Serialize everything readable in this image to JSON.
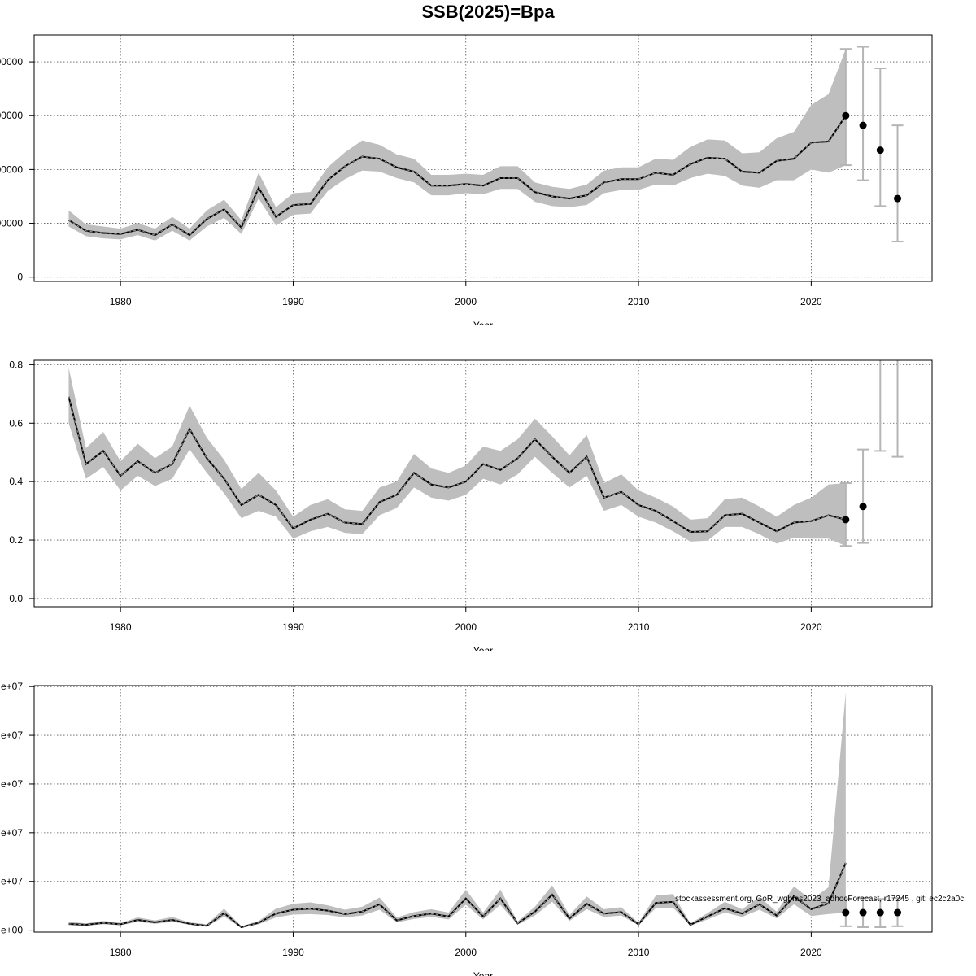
{
  "title": "SSB(2025)=Bpa",
  "footnote": "stockassessment.org, GoR_wgbfas2023_adhocForecast, r17245 , git: ec2c2a0c",
  "colors": {
    "band": "#bebebe",
    "line": "#000000",
    "grid": "#555555",
    "whisker": "#b5b5b5"
  },
  "chart_data": [
    {
      "type": "line",
      "xlabel": "Year",
      "xlim": [
        1975,
        2027
      ],
      "ylim": [
        -8000,
        450000
      ],
      "xticks": [
        1980,
        1990,
        2000,
        2010,
        2020
      ],
      "yticks": [
        0,
        100000,
        200000,
        300000,
        400000
      ],
      "ytick_labels": [
        "0",
        "00000",
        "00000",
        "00000",
        "00000"
      ],
      "grid": true,
      "series": [
        {
          "x": [
            1977,
            1978,
            1979,
            1980,
            1981,
            1982,
            1983,
            1984,
            1985,
            1986,
            1987,
            1988,
            1989,
            1990,
            1991,
            1992,
            1993,
            1994,
            1995,
            1996,
            1997,
            1998,
            1999,
            2000,
            2001,
            2002,
            2003,
            2004,
            2005,
            2006,
            2007,
            2008,
            2009,
            2010,
            2011,
            2012,
            2013,
            2014,
            2015,
            2016,
            2017,
            2018,
            2019,
            2020,
            2021,
            2022
          ],
          "y": [
            106000,
            86000,
            82000,
            80000,
            88000,
            78000,
            98000,
            78000,
            108000,
            126000,
            92000,
            166000,
            112000,
            134000,
            136000,
            180000,
            206000,
            224000,
            220000,
            204000,
            196000,
            170000,
            170000,
            173000,
            170000,
            184000,
            184000,
            158000,
            150000,
            146000,
            152000,
            176000,
            182000,
            182000,
            194000,
            190000,
            210000,
            222000,
            220000,
            196000,
            194000,
            216000,
            220000,
            250000,
            252000,
            300000
          ],
          "lower": [
            94000,
            76000,
            72000,
            70000,
            78000,
            68000,
            86000,
            68000,
            94000,
            110000,
            80000,
            146000,
            96000,
            116000,
            118000,
            160000,
            182000,
            198000,
            196000,
            184000,
            176000,
            152000,
            152000,
            156000,
            154000,
            164000,
            164000,
            140000,
            132000,
            130000,
            134000,
            156000,
            162000,
            162000,
            172000,
            170000,
            184000,
            192000,
            188000,
            170000,
            166000,
            180000,
            180000,
            200000,
            194000,
            208000
          ],
          "upper": [
            124000,
            98000,
            94000,
            90000,
            100000,
            90000,
            112000,
            90000,
            124000,
            144000,
            106000,
            194000,
            130000,
            156000,
            158000,
            204000,
            232000,
            254000,
            246000,
            228000,
            220000,
            190000,
            190000,
            192000,
            190000,
            206000,
            206000,
            176000,
            168000,
            164000,
            172000,
            198000,
            204000,
            204000,
            220000,
            218000,
            242000,
            256000,
            254000,
            230000,
            232000,
            258000,
            270000,
            320000,
            340000,
            424000
          ]
        }
      ],
      "forecast": {
        "x": [
          2022,
          2023,
          2024,
          2025
        ],
        "y": [
          300000,
          282000,
          236000,
          146000
        ],
        "lower": [
          208000,
          180000,
          132000,
          66000
        ],
        "upper": [
          424000,
          428000,
          388000,
          282000
        ]
      }
    },
    {
      "type": "line",
      "xlabel": "Year",
      "xlim": [
        1975,
        2027
      ],
      "ylim": [
        -0.028,
        0.815
      ],
      "xticks": [
        1980,
        1990,
        2000,
        2010,
        2020
      ],
      "yticks": [
        0,
        0.2,
        0.4,
        0.6,
        0.8
      ],
      "ytick_labels": [
        "0.0",
        "0.2",
        "0.4",
        "0.6",
        "0.8"
      ],
      "grid": true,
      "series": [
        {
          "x": [
            1977,
            1978,
            1979,
            1980,
            1981,
            1982,
            1983,
            1984,
            1985,
            1986,
            1987,
            1988,
            1989,
            1990,
            1991,
            1992,
            1993,
            1994,
            1995,
            1996,
            1997,
            1998,
            1999,
            2000,
            2001,
            2002,
            2003,
            2004,
            2005,
            2006,
            2007,
            2008,
            2009,
            2010,
            2011,
            2012,
            2013,
            2014,
            2015,
            2016,
            2017,
            2018,
            2019,
            2020,
            2021,
            2022
          ],
          "y": [
            0.69,
            0.46,
            0.505,
            0.42,
            0.47,
            0.43,
            0.46,
            0.58,
            0.48,
            0.41,
            0.32,
            0.355,
            0.32,
            0.24,
            0.27,
            0.29,
            0.26,
            0.255,
            0.33,
            0.355,
            0.43,
            0.39,
            0.38,
            0.4,
            0.46,
            0.44,
            0.48,
            0.545,
            0.485,
            0.43,
            0.485,
            0.345,
            0.365,
            0.32,
            0.3,
            0.265,
            0.228,
            0.23,
            0.285,
            0.29,
            0.26,
            0.23,
            0.26,
            0.265,
            0.285,
            0.27
          ],
          "lower": [
            0.6,
            0.41,
            0.45,
            0.37,
            0.42,
            0.385,
            0.41,
            0.51,
            0.43,
            0.36,
            0.275,
            0.3,
            0.28,
            0.205,
            0.23,
            0.245,
            0.225,
            0.22,
            0.285,
            0.31,
            0.38,
            0.345,
            0.335,
            0.355,
            0.41,
            0.39,
            0.425,
            0.485,
            0.43,
            0.38,
            0.42,
            0.3,
            0.32,
            0.28,
            0.26,
            0.23,
            0.195,
            0.198,
            0.245,
            0.245,
            0.22,
            0.188,
            0.208,
            0.205,
            0.205,
            0.18
          ],
          "upper": [
            0.79,
            0.515,
            0.57,
            0.47,
            0.53,
            0.48,
            0.52,
            0.66,
            0.55,
            0.475,
            0.375,
            0.43,
            0.37,
            0.28,
            0.32,
            0.34,
            0.305,
            0.3,
            0.38,
            0.4,
            0.495,
            0.445,
            0.43,
            0.455,
            0.52,
            0.505,
            0.545,
            0.615,
            0.555,
            0.49,
            0.56,
            0.395,
            0.425,
            0.37,
            0.345,
            0.315,
            0.27,
            0.275,
            0.34,
            0.345,
            0.315,
            0.28,
            0.32,
            0.345,
            0.39,
            0.395
          ]
        }
      ],
      "forecast": {
        "x": [
          2022,
          2023,
          2024,
          2025
        ],
        "y": [
          0.27,
          0.315,
          null,
          null
        ],
        "lower": [
          0.18,
          0.19,
          0.505,
          0.485
        ],
        "upper": [
          0.395,
          0.51,
          0.85,
          0.85
        ]
      }
    },
    {
      "type": "line",
      "xlabel": "Year",
      "xlim": [
        1975,
        2027
      ],
      "ylim": [
        -0.4,
        50.2
      ],
      "xticks": [
        1980,
        1990,
        2000,
        2010,
        2020
      ],
      "yticks": [
        0,
        10,
        20,
        30,
        40,
        50
      ],
      "ytick_labels": [
        "e+00",
        "e+07",
        "e+07",
        "e+07",
        "e+07",
        "e+07"
      ],
      "grid": true,
      "series": [
        {
          "x": [
            1977,
            1978,
            1979,
            1980,
            1981,
            1982,
            1983,
            1984,
            1985,
            1986,
            1987,
            1988,
            1989,
            1990,
            1991,
            1992,
            1993,
            1994,
            1995,
            1996,
            1997,
            1998,
            1999,
            2000,
            2001,
            2002,
            2003,
            2004,
            2005,
            2006,
            2007,
            2008,
            2009,
            2010,
            2011,
            2012,
            2013,
            2014,
            2015,
            2016,
            2017,
            2018,
            2019,
            2020,
            2021,
            2022
          ],
          "y": [
            1.3,
            1.1,
            1.5,
            1.2,
            2.1,
            1.6,
            2.1,
            1.3,
            0.9,
            3.5,
            0.6,
            1.5,
            3.4,
            4.2,
            4.4,
            4.0,
            3.3,
            3.8,
            5.3,
            2.0,
            2.9,
            3.4,
            2.8,
            6.5,
            2.8,
            6.5,
            1.4,
            3.8,
            7.3,
            2.4,
            5.4,
            3.4,
            3.7,
            1.2,
            5.6,
            5.8,
            1.1,
            2.8,
            4.5,
            3.4,
            5.3,
            3.0,
            6.9,
            4.3,
            5.5,
            13.8
          ],
          "lower": [
            1.0,
            0.9,
            1.2,
            1.0,
            1.7,
            1.3,
            1.7,
            1.1,
            0.7,
            2.8,
            0.5,
            1.2,
            2.6,
            3.2,
            3.3,
            3.1,
            2.6,
            3.0,
            4.2,
            1.6,
            2.3,
            2.7,
            2.2,
            5.2,
            2.2,
            5.2,
            1.1,
            3.0,
            5.8,
            1.9,
            4.3,
            2.7,
            3.0,
            1.0,
            4.5,
            4.6,
            0.9,
            2.2,
            3.6,
            2.7,
            4.2,
            2.4,
            5.3,
            2.9,
            3.3,
            3.6
          ],
          "upper": [
            1.7,
            1.4,
            1.9,
            1.5,
            2.6,
            2.0,
            2.7,
            1.6,
            1.2,
            4.4,
            0.8,
            1.9,
            4.4,
            5.4,
            5.7,
            5.1,
            4.2,
            4.8,
            6.7,
            2.6,
            3.7,
            4.3,
            3.6,
            8.3,
            3.6,
            8.3,
            1.8,
            4.8,
            9.2,
            3.1,
            6.9,
            4.3,
            4.7,
            1.5,
            7.1,
            7.4,
            1.4,
            3.5,
            5.8,
            4.3,
            6.8,
            3.8,
            9.0,
            6.2,
            8.8,
            48.8
          ]
        }
      ],
      "forecast": {
        "x": [
          2022,
          2023,
          2024,
          2025
        ],
        "y": [
          3.6,
          3.6,
          3.6,
          3.6
        ],
        "lower": [
          0.8,
          0.6,
          0.6,
          0.8
        ],
        "upper": [
          6.4,
          6.6,
          6.4,
          6.6
        ]
      }
    }
  ]
}
